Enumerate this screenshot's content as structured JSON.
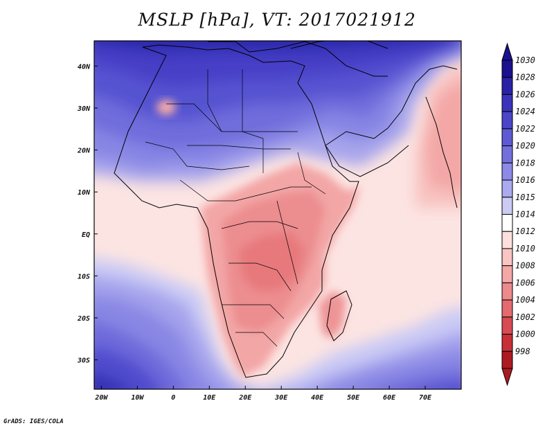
{
  "title": "MSLP [hPa], VT: 2017021912",
  "credit": "GrADS: IGES/COLA",
  "map": {
    "lon_range": [
      -22,
      80
    ],
    "lat_range": [
      -37,
      46
    ],
    "lon_ticks": [
      {
        "value": -20,
        "label": "20W"
      },
      {
        "value": -10,
        "label": "10W"
      },
      {
        "value": 0,
        "label": "0"
      },
      {
        "value": 10,
        "label": "10E"
      },
      {
        "value": 20,
        "label": "20E"
      },
      {
        "value": 30,
        "label": "30E"
      },
      {
        "value": 40,
        "label": "40E"
      },
      {
        "value": 50,
        "label": "50E"
      },
      {
        "value": 60,
        "label": "60E"
      },
      {
        "value": 70,
        "label": "70E"
      }
    ],
    "lat_ticks": [
      {
        "value": 40,
        "label": "40N"
      },
      {
        "value": 30,
        "label": "30N"
      },
      {
        "value": 20,
        "label": "20N"
      },
      {
        "value": 10,
        "label": "10N"
      },
      {
        "value": 0,
        "label": "EQ"
      },
      {
        "value": -10,
        "label": "10S"
      },
      {
        "value": -20,
        "label": "20S"
      },
      {
        "value": -30,
        "label": "30S"
      }
    ]
  },
  "colorbar": {
    "levels": [
      {
        "label": "1030",
        "color": "#1b108f"
      },
      {
        "label": "1028",
        "color": "#2a22a6"
      },
      {
        "label": "1026",
        "color": "#3a33bb"
      },
      {
        "label": "1024",
        "color": "#4a45c9"
      },
      {
        "label": "1022",
        "color": "#5d5ad4"
      },
      {
        "label": "1020",
        "color": "#7370dd"
      },
      {
        "label": "1018",
        "color": "#8c8ae6"
      },
      {
        "label": "1016",
        "color": "#aaaaee"
      },
      {
        "label": "1015",
        "color": "#cbcbf5"
      },
      {
        "label": "1014",
        "color": "#ffffff"
      },
      {
        "label": "1012",
        "color": "#fde0de"
      },
      {
        "label": "1010",
        "color": "#f9c4c2"
      },
      {
        "label": "1008",
        "color": "#f3a7a7"
      },
      {
        "label": "1006",
        "color": "#ec8a8c"
      },
      {
        "label": "1004",
        "color": "#e36b70"
      },
      {
        "label": "1002",
        "color": "#d84b52"
      },
      {
        "label": "1000",
        "color": "#c92f37"
      },
      {
        "label": "998",
        "color": "#ad1a22"
      }
    ]
  }
}
